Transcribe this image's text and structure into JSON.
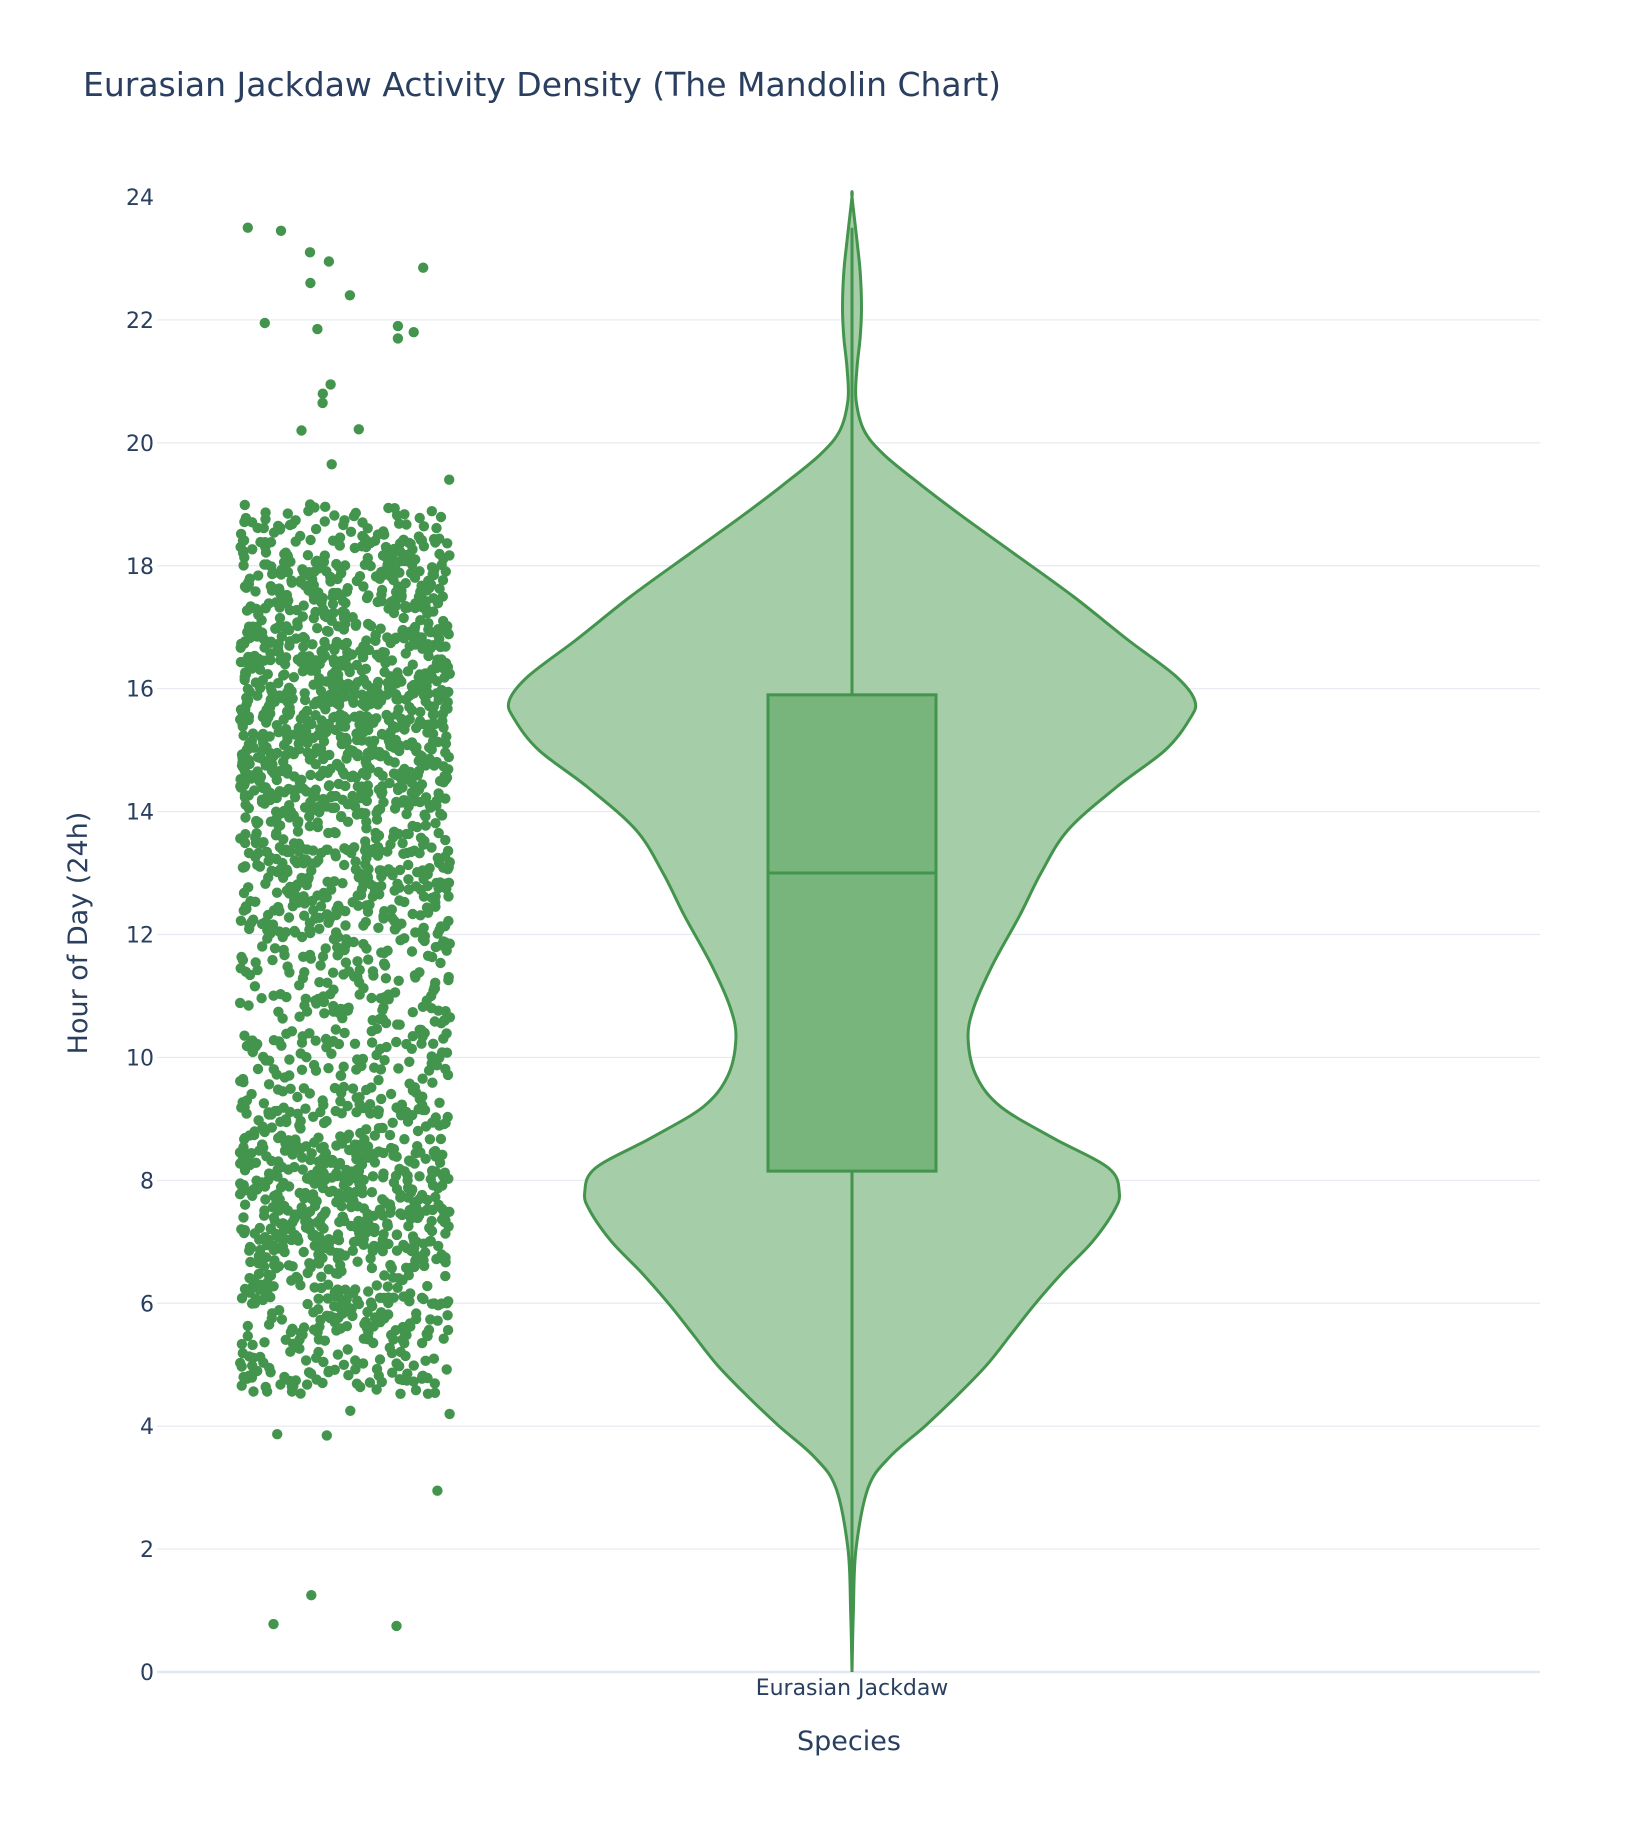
{
  "chart_data": {
    "type": "violin",
    "title": "Eurasian Jackdaw Activity Density (The Mandolin Chart)",
    "xlabel": "Species",
    "ylabel": "Hour of Day (24h)",
    "categories": [
      "Eurasian Jackdaw"
    ],
    "ylim": [
      0,
      24
    ],
    "yticks": [
      "0",
      "2",
      "4",
      "6",
      "8",
      "10",
      "12",
      "14",
      "16",
      "18",
      "20",
      "22",
      "24"
    ],
    "grid": true,
    "legend": "none",
    "points": "all",
    "color": "#43944d",
    "fill_color": "#a5cda8",
    "box_fill_color": "#78b57c",
    "box": {
      "q1": 8.15,
      "median": 13.0,
      "q3": 15.9,
      "whisker_low": 0.0,
      "whisker_high": 23.5
    },
    "density_profile": [
      [
        0.0,
        0.0
      ],
      [
        1.0,
        0.005
      ],
      [
        2.0,
        0.015
      ],
      [
        3.0,
        0.06
      ],
      [
        3.5,
        0.14
      ],
      [
        4.0,
        0.27
      ],
      [
        4.5,
        0.39
      ],
      [
        5.0,
        0.5
      ],
      [
        5.5,
        0.59
      ],
      [
        6.0,
        0.68
      ],
      [
        6.5,
        0.78
      ],
      [
        7.0,
        0.89
      ],
      [
        7.5,
        0.97
      ],
      [
        7.8,
        0.99
      ],
      [
        8.2,
        0.95
      ],
      [
        8.7,
        0.74
      ],
      [
        9.2,
        0.55
      ],
      [
        9.7,
        0.46
      ],
      [
        10.3,
        0.43
      ],
      [
        10.8,
        0.45
      ],
      [
        11.5,
        0.52
      ],
      [
        12.3,
        0.62
      ],
      [
        13.0,
        0.7
      ],
      [
        13.7,
        0.8
      ],
      [
        14.4,
        0.98
      ],
      [
        15.0,
        1.16
      ],
      [
        15.5,
        1.25
      ],
      [
        15.8,
        1.27
      ],
      [
        16.2,
        1.2
      ],
      [
        16.8,
        1.02
      ],
      [
        17.5,
        0.82
      ],
      [
        18.2,
        0.6
      ],
      [
        18.8,
        0.41
      ],
      [
        19.3,
        0.26
      ],
      [
        19.8,
        0.12
      ],
      [
        20.2,
        0.045
      ],
      [
        20.7,
        0.015
      ],
      [
        21.2,
        0.018
      ],
      [
        21.7,
        0.03
      ],
      [
        22.2,
        0.035
      ],
      [
        22.8,
        0.03
      ],
      [
        23.3,
        0.018
      ],
      [
        24.0,
        0.0
      ]
    ],
    "observations_note_values": [
      0.75,
      0.78,
      1.25,
      2.95,
      3.85,
      3.87,
      4.2,
      4.25,
      19.4,
      19.65,
      20.2,
      20.22,
      20.65,
      20.8,
      20.95,
      21.7,
      21.8,
      21.85,
      21.9,
      21.95,
      22.4,
      22.6,
      22.85,
      22.95,
      23.1,
      23.45,
      23.5
    ]
  }
}
